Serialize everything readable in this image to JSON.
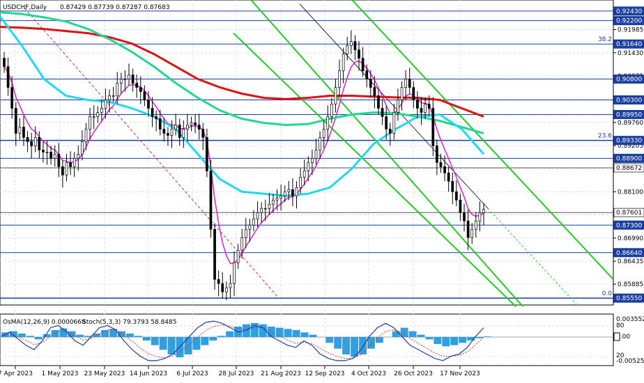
{
  "header": {
    "symbol": "USDCHF,Daily",
    "ohlc": "0.87429 0.87739 0.87287 0.87683"
  },
  "osc_header": {
    "osma": "OsMA(12,26,9) 0.0000668",
    "stoch": "Stoch(5,3,3) 79.3793 58.8485"
  },
  "colors": {
    "up_candle": "#000000",
    "down_candle": "#000000",
    "ema_200": "#e01010",
    "ema_144": "#20d890",
    "ema_50": "#20d8f0",
    "ema_12": "#e020d0",
    "channel": "#22cc22",
    "h_level": "#1a3fa0",
    "fib_line": "#1a3fa0",
    "tag_bg": "#1a3fa0",
    "trend_red": "#e03030",
    "osma_bar": "#2f9fe0",
    "stoch_main": "#1a3fa0",
    "stoch_signal": "#e03030"
  },
  "chart_data": {
    "type": "candlestick",
    "symbol": "USDCHF",
    "timeframe": "Daily",
    "ylim": [
      0.85385,
      0.92695
    ],
    "x_ticks": [
      "7 Apr 2023",
      "1 May 2023",
      "23 May 2023",
      "14 Jun 2023",
      "6 Jul 2023",
      "28 Jul 2023",
      "21 Aug 2023",
      "12 Sep 2023",
      "4 Oct 2023",
      "26 Oct 2023",
      "17 Nov 2023"
    ],
    "y_ticks": [
      "0.91985",
      "0.91430",
      "0.90875",
      "0.90315",
      "0.89760",
      "0.89205",
      "0.88650",
      "0.88100",
      "0.87545",
      "0.86990",
      "0.86435",
      "0.85885",
      "0.85385"
    ],
    "level_tags": [
      "0.92430",
      "0.92200",
      "0.91640",
      "0.90800",
      "0.90300",
      "0.89950",
      "0.89330",
      "0.88900",
      "0.88672",
      "0.87601",
      "0.87300",
      "0.86640",
      "0.85550"
    ],
    "fib_labels": [
      "38.2",
      "23.6",
      "0.0"
    ],
    "series_close": [
      0.911,
      0.906,
      0.901,
      0.895,
      0.8965,
      0.894,
      0.893,
      0.892,
      0.894,
      0.891,
      0.8905,
      0.8905,
      0.889,
      0.89,
      0.887,
      0.885,
      0.888,
      0.887,
      0.889,
      0.89,
      0.893,
      0.896,
      0.899,
      0.899,
      0.9,
      0.901,
      0.903,
      0.904,
      0.904,
      0.907,
      0.908,
      0.908,
      0.909,
      0.907,
      0.906,
      0.905,
      0.903,
      0.901,
      0.899,
      0.8985,
      0.896,
      0.895,
      0.8945,
      0.896,
      0.897,
      0.894,
      0.896,
      0.897,
      0.8975,
      0.897,
      0.896,
      0.894,
      0.886,
      0.872,
      0.86,
      0.859,
      0.857,
      0.858,
      0.859,
      0.864,
      0.867,
      0.87,
      0.872,
      0.873,
      0.8745,
      0.876,
      0.877,
      0.877,
      0.878,
      0.879,
      0.8795,
      0.88,
      0.881,
      0.8815,
      0.88,
      0.882,
      0.8845,
      0.886,
      0.888,
      0.889,
      0.891,
      0.894,
      0.896,
      0.899,
      0.902,
      0.906,
      0.91,
      0.914,
      0.916,
      0.917,
      0.915,
      0.913,
      0.91,
      0.908,
      0.906,
      0.904,
      0.901,
      0.899,
      0.896,
      0.895,
      0.9,
      0.903,
      0.906,
      0.908,
      0.906,
      0.903,
      0.901,
      0.9,
      0.902,
      0.901,
      0.892,
      0.888,
      0.887,
      0.8855,
      0.8835,
      0.881,
      0.879,
      0.876,
      0.874,
      0.87,
      0.872,
      0.874,
      0.876,
      0.8768
    ],
    "ema_200": [
      0.9205,
      0.9203,
      0.92,
      0.9195,
      0.919,
      0.918,
      0.9165,
      0.914,
      0.911,
      0.908,
      0.906,
      0.9045,
      0.9035,
      0.9032,
      0.9035,
      0.904,
      0.904,
      0.9038,
      0.9036,
      0.9035,
      0.903,
      0.901,
      0.899
    ],
    "ema_144": [
      0.924,
      0.9236,
      0.9228,
      0.9218,
      0.92,
      0.9175,
      0.9145,
      0.911,
      0.907,
      0.9035,
      0.9005,
      0.8985,
      0.8975,
      0.897,
      0.8972,
      0.8985,
      0.8995,
      0.9,
      0.8998,
      0.899,
      0.898,
      0.8965,
      0.895
    ],
    "ema_50": [
      0.923,
      0.916,
      0.908,
      0.904,
      0.903,
      0.9025,
      0.901,
      0.899,
      0.896,
      0.89,
      0.884,
      0.881,
      0.8805,
      0.88,
      0.8805,
      0.882,
      0.8865,
      0.8925,
      0.896,
      0.899,
      0.8995,
      0.896,
      0.89
    ],
    "osma_values": [
      0.0008,
      0.001,
      0.0006,
      0.0002,
      -0.0004,
      0.0005,
      0.0012,
      0.0015,
      0.001,
      0.0004,
      0.0002,
      0.0006,
      0.0012,
      0.0014,
      0.001,
      0.0006,
      0.0002,
      -0.0006,
      -0.0014,
      -0.0022,
      -0.003,
      -0.0035,
      -0.003,
      -0.0022,
      -0.0014,
      -0.0006,
      0.0002,
      0.001,
      0.0018,
      0.0022,
      0.0024,
      0.0022,
      0.0018,
      0.0016,
      0.0014,
      0.0012,
      0.0008,
      0.0004,
      0.0,
      -0.001,
      -0.002,
      -0.003,
      -0.0034,
      -0.003,
      -0.002,
      -0.001,
      0.0,
      0.001,
      0.0016,
      0.001,
      0.0004,
      -0.0004,
      -0.0012,
      -0.0016,
      -0.0014,
      -0.001,
      -0.0006,
      -0.0002,
      0.0001
    ],
    "stoch_main": [
      60,
      70,
      55,
      40,
      30,
      50,
      80,
      85,
      70,
      50,
      40,
      60,
      80,
      85,
      75,
      50,
      30,
      15,
      5,
      5,
      10,
      20,
      40,
      60,
      80,
      92,
      95,
      90,
      80,
      70,
      75,
      85,
      80,
      60,
      50,
      40,
      35,
      50,
      40,
      20,
      10,
      5,
      5,
      10,
      30,
      60,
      80,
      90,
      80,
      60,
      40,
      30,
      20,
      10,
      5,
      15,
      20,
      35,
      60,
      80
    ]
  }
}
